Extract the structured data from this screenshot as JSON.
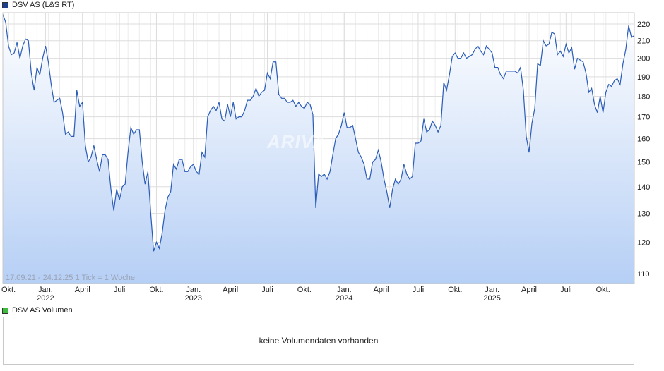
{
  "legend": {
    "price_label": "DSV AS (L&S RT)",
    "price_color": "#1f3f8f",
    "volume_label": "DSV AS Volumen",
    "volume_color": "#3dbb3d"
  },
  "range_text": "17.09.21 - 24.12.25   1 Tick = 1 Woche",
  "watermark": "ARIVA",
  "volume_message": "keine Volumendaten vorhanden",
  "chart_data": {
    "type": "area",
    "series": [
      {
        "name": "DSV AS (L&S RT)",
        "color": "#2a5cb8",
        "values": [
          226,
          221,
          207,
          202,
          203,
          209,
          200,
          207,
          211,
          210,
          192,
          183,
          195,
          191,
          200,
          207,
          198,
          186,
          177,
          178,
          179,
          172,
          162,
          163,
          161,
          161,
          183,
          175,
          177,
          157,
          150,
          152,
          157,
          151,
          146,
          153,
          153,
          151,
          139,
          131,
          139,
          135,
          140,
          141,
          154,
          165,
          162,
          164,
          164,
          150,
          141,
          146,
          130,
          117,
          120,
          118,
          123,
          131,
          136,
          138,
          149,
          147,
          151,
          151,
          146,
          146,
          148,
          149,
          146,
          145,
          154,
          152,
          170,
          173,
          175,
          173,
          177,
          169,
          168,
          176,
          170,
          177,
          169,
          170,
          170,
          173,
          178,
          178,
          180,
          184,
          180,
          182,
          183,
          192,
          189,
          198,
          198,
          181,
          179,
          179,
          177,
          177,
          178,
          175,
          177,
          175,
          174,
          177,
          176,
          171,
          132,
          145,
          144,
          145,
          143,
          146,
          153,
          160,
          162,
          166,
          172,
          165,
          165,
          166,
          160,
          154,
          152,
          149,
          143,
          143,
          150,
          151,
          155,
          150,
          143,
          138,
          132,
          139,
          143,
          141,
          143,
          149,
          145,
          143,
          144,
          158,
          158,
          159,
          169,
          163,
          164,
          168,
          166,
          163,
          166,
          187,
          183,
          191,
          201,
          203,
          200,
          200,
          203,
          200,
          201,
          202,
          205,
          207,
          204,
          202,
          207,
          205,
          203,
          195,
          195,
          191,
          189,
          193,
          193,
          193,
          193,
          192,
          195,
          183,
          161,
          154,
          167,
          174,
          197,
          196,
          210,
          207,
          208,
          215,
          214,
          202,
          204,
          201,
          208,
          203,
          206,
          194,
          200,
          199,
          198,
          192,
          182,
          184,
          176,
          172,
          180,
          172,
          182,
          186,
          185,
          188,
          189,
          186,
          197,
          205,
          219,
          212,
          213
        ]
      }
    ],
    "x_ticks": [
      {
        "label": "Okt.",
        "year": ""
      },
      {
        "label": "Jan.",
        "year": "2022"
      },
      {
        "label": "April",
        "year": ""
      },
      {
        "label": "Juli",
        "year": ""
      },
      {
        "label": "Okt.",
        "year": ""
      },
      {
        "label": "Jan.",
        "year": "2023"
      },
      {
        "label": "April",
        "year": ""
      },
      {
        "label": "Juli",
        "year": ""
      },
      {
        "label": "Okt.",
        "year": ""
      },
      {
        "label": "Jan.",
        "year": "2024"
      },
      {
        "label": "April",
        "year": ""
      },
      {
        "label": "Juli",
        "year": ""
      },
      {
        "label": "Okt.",
        "year": ""
      },
      {
        "label": "Jan.",
        "year": "2025"
      },
      {
        "label": "April",
        "year": ""
      },
      {
        "label": "Juli",
        "year": ""
      },
      {
        "label": "Okt.",
        "year": ""
      }
    ],
    "x_tick_weeks": [
      2,
      15,
      28,
      41,
      54,
      67,
      80,
      93,
      106,
      120,
      133,
      146,
      159,
      172,
      185,
      198,
      211
    ],
    "y_ticks": [
      110,
      120,
      130,
      140,
      150,
      160,
      170,
      180,
      190,
      200,
      210,
      220
    ],
    "ylim": [
      107,
      227
    ],
    "y_scale": "log",
    "grid": true
  }
}
